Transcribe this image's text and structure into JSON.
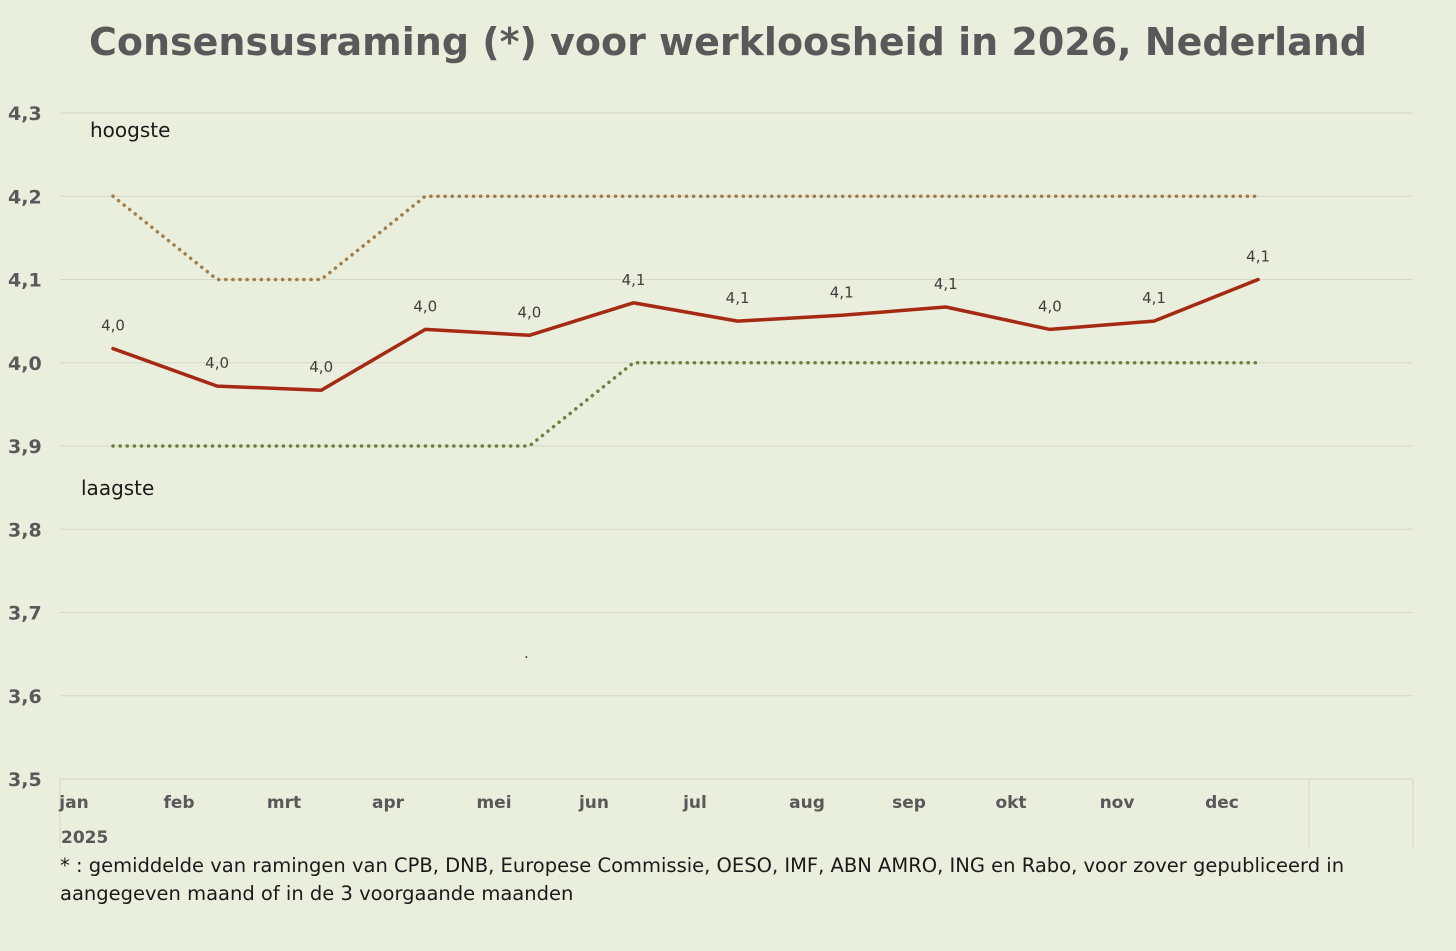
{
  "chart_data": {
    "type": "line",
    "title": "Consensusraming (*) voor werkloosheid in 2026, Nederland",
    "categories": [
      "jan",
      "feb",
      "mrt",
      "apr",
      "mei",
      "jun",
      "jul",
      "aug",
      "sep",
      "okt",
      "nov",
      "dec"
    ],
    "x_group_label": "2025",
    "ylim": [
      3.5,
      4.3
    ],
    "yticks": [
      3.5,
      3.6,
      3.7,
      3.8,
      3.9,
      4.0,
      4.1,
      4.2,
      4.3
    ],
    "ytick_labels": [
      "3,5",
      "3,6",
      "3,7",
      "3,8",
      "3,9",
      "4,0",
      "4,1",
      "4,2",
      "4,3"
    ],
    "grid": true,
    "series": [
      {
        "name": "hoogste",
        "style": "dotted",
        "color": "#a07d4a",
        "values": [
          4.2,
          4.1,
          4.1,
          4.2,
          4.2,
          4.2,
          4.2,
          4.2,
          4.2,
          4.2,
          4.2,
          4.2
        ]
      },
      {
        "name": "consensus",
        "style": "solid",
        "color": "#a52a14",
        "values": [
          4.017,
          3.972,
          3.967,
          4.04,
          4.033,
          4.072,
          4.05,
          4.057,
          4.067,
          4.04,
          4.05,
          4.1
        ],
        "data_labels": [
          "4,0",
          "4,0",
          "4,0",
          "4,0",
          "4,0",
          "4,1",
          "4,1",
          "4,1",
          "4,1",
          "4,0",
          "4,1",
          "4,1"
        ]
      },
      {
        "name": "laagste",
        "style": "dotted",
        "color": "#6d7f43",
        "values": [
          3.9,
          3.9,
          3.9,
          3.9,
          3.9,
          4.0,
          4.0,
          4.0,
          4.0,
          4.0,
          4.0,
          4.0
        ]
      }
    ],
    "annotations": {
      "hoogste_label": "hoogste",
      "laagste_label": "laagste",
      "stray_mark": "."
    }
  },
  "footnote": "* : gemiddelde van ramingen van CPB, DNB, Europese Commissie, OESO, IMF, ABN AMRO, ING en Rabo, voor zover gepubliceerd in aangegeven maand of in de 3 voorgaande maanden"
}
